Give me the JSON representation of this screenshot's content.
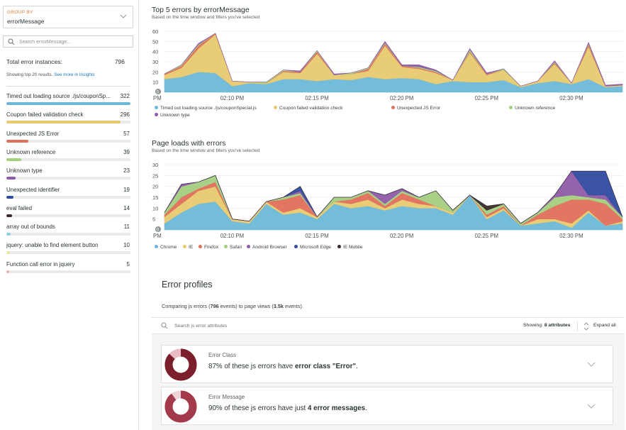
{
  "sidebar": {
    "group_by": {
      "label": "GROUP BY",
      "value": "errorMessage"
    },
    "search": {
      "placeholder": "Search errorMessage..."
    },
    "total": {
      "label": "Total error instances:",
      "value": "796"
    },
    "showing": {
      "text": "Showing top 20 results.",
      "link": "See more in Insights"
    },
    "errors": [
      {
        "label": "Timed out loading source ./js/couponSp...",
        "count": 322,
        "color": "#6cb8d8"
      },
      {
        "label": "Coupon failed validation check",
        "count": 296,
        "color": "#e8c96f"
      },
      {
        "label": "Unexpected JS Error",
        "count": 57,
        "color": "#e06f5b"
      },
      {
        "label": "Unknown reference",
        "count": 39,
        "color": "#a4cf7f"
      },
      {
        "label": "Unknown type",
        "count": 23,
        "color": "#8e5ba8"
      },
      {
        "label": "Unexpected identifier",
        "count": 19,
        "color": "#2f4aa0"
      },
      {
        "label": "eval failed",
        "count": 14,
        "color": "#3c2a2a"
      },
      {
        "label": "array out of bounds",
        "count": 11,
        "color": "#8fd0e8"
      },
      {
        "label": "jquery: unable to find element button",
        "count": 10,
        "color": "#f1e4a8"
      },
      {
        "label": "Function call error in jquery",
        "count": 5,
        "color": "#f0b0a8"
      }
    ]
  },
  "chart1": {
    "title": "Top 5 errors by errorMessage",
    "subtitle": "Based on the time window and filters you've selected",
    "legend": [
      {
        "label": "Timed out loading source ./js/couponSpecial.js",
        "color": "#6cb8d8"
      },
      {
        "label": "Coupon failed validation check",
        "color": "#e8c96f"
      },
      {
        "label": "Unexpected JS Error",
        "color": "#e06f5b"
      },
      {
        "label": "Unknown reference",
        "color": "#a4cf7f"
      },
      {
        "label": "Unknown type",
        "color": "#8e5ba8"
      }
    ]
  },
  "chart2": {
    "title": "Page loads with errors",
    "subtitle": "Based on the time window and filters you've selected",
    "legend": [
      {
        "label": "Chrome",
        "color": "#6cb8d8"
      },
      {
        "label": "IE",
        "color": "#e8c96f"
      },
      {
        "label": "Firefox",
        "color": "#e06f5b"
      },
      {
        "label": "Safari",
        "color": "#a4cf7f"
      },
      {
        "label": "Android Browser",
        "color": "#8e5ba8"
      },
      {
        "label": "Microsoft Edge",
        "color": "#2f4aa0"
      },
      {
        "label": "IE Mobile",
        "color": "#3c2a2a"
      }
    ]
  },
  "chart_data": [
    {
      "type": "area",
      "title": "Top 5 errors by errorMessage",
      "x": [
        "02:06 PM",
        "02:07",
        "02:08",
        "02:09",
        "02:10",
        "02:11",
        "02:12",
        "02:13",
        "02:14",
        "02:15",
        "02:16",
        "02:17",
        "02:18",
        "02:19",
        "02:20",
        "02:21",
        "02:22",
        "02:23",
        "02:24",
        "02:25",
        "02:26",
        "02:27",
        "02:28",
        "02:29",
        "02:30",
        "02:31",
        "02:32",
        "02:33"
      ],
      "xticks": [
        "PM",
        "02:10 PM",
        "02:15 PM",
        "02:20 PM",
        "02:25 PM",
        "02:30 PM"
      ],
      "ylim": [
        0,
        60
      ],
      "yticks": [
        0,
        10,
        20,
        30,
        40,
        50,
        60
      ],
      "series": [
        {
          "name": "Timed out loading source ./js/couponSpecial.js",
          "values": [
            13,
            15,
            20,
            19,
            6,
            9,
            8,
            13,
            13,
            11,
            13,
            12,
            15,
            13,
            14,
            13,
            8,
            11,
            10,
            10,
            12,
            5,
            9,
            11,
            8,
            13,
            5,
            6
          ]
        },
        {
          "name": "Coupon failed validation check",
          "values": [
            4,
            9,
            23,
            38,
            5,
            1,
            1,
            7,
            6,
            27,
            4,
            6,
            6,
            33,
            11,
            10,
            11,
            1,
            29,
            7,
            10,
            1,
            2,
            17,
            1,
            32,
            1,
            1
          ]
        },
        {
          "name": "Unexpected JS Error",
          "values": [
            1,
            2,
            3,
            1,
            0,
            0,
            0,
            1,
            1,
            2,
            0,
            0,
            2,
            2,
            1,
            1,
            1,
            0,
            1,
            1,
            0,
            0,
            0,
            1,
            0,
            2,
            0,
            0
          ]
        },
        {
          "name": "Unknown reference",
          "values": [
            0,
            1,
            1,
            0,
            0,
            0,
            1,
            1,
            0,
            1,
            0,
            1,
            1,
            1,
            0,
            1,
            1,
            0,
            2,
            0,
            1,
            0,
            0,
            1,
            0,
            1,
            0,
            0
          ]
        },
        {
          "name": "Unknown type",
          "values": [
            0,
            0,
            1,
            0,
            0,
            0,
            0,
            0,
            1,
            0,
            1,
            0,
            0,
            1,
            1,
            2,
            1,
            0,
            1,
            1,
            0,
            0,
            0,
            1,
            0,
            1,
            1,
            1
          ]
        }
      ]
    },
    {
      "type": "area",
      "title": "Page loads with errors",
      "x": [
        "02:06 PM",
        "02:07",
        "02:08",
        "02:09",
        "02:10",
        "02:11",
        "02:12",
        "02:13",
        "02:14",
        "02:15",
        "02:16",
        "02:17",
        "02:18",
        "02:19",
        "02:20",
        "02:21",
        "02:22",
        "02:23",
        "02:24",
        "02:25",
        "02:26",
        "02:27",
        "02:28",
        "02:29",
        "02:30",
        "02:31",
        "02:32",
        "02:33"
      ],
      "xticks": [
        "PM",
        "02:10 PM",
        "02:15 PM",
        "02:20 PM",
        "02:25 PM",
        "02:30 PM"
      ],
      "ylim": [
        0,
        30
      ],
      "yticks": [
        0,
        5,
        10,
        15,
        20,
        25,
        30
      ],
      "series": [
        {
          "name": "Chrome",
          "values": [
            3,
            8,
            12,
            13,
            4,
            3,
            12,
            7,
            8,
            5,
            12,
            10,
            11,
            9,
            11,
            10,
            10,
            7,
            16,
            5,
            9,
            2,
            3,
            4,
            1,
            8,
            2,
            3
          ]
        },
        {
          "name": "IE",
          "values": [
            3,
            4,
            6,
            7,
            1,
            1,
            1,
            1,
            2,
            1,
            1,
            2,
            3,
            1,
            3,
            2,
            1,
            1,
            0,
            1,
            1,
            0,
            2,
            1,
            2,
            1,
            0,
            1
          ]
        },
        {
          "name": "Firefox",
          "values": [
            1,
            3,
            1,
            2,
            0,
            0,
            0,
            6,
            6,
            0,
            0,
            2,
            3,
            1,
            3,
            2,
            0,
            0,
            0,
            1,
            1,
            0,
            2,
            6,
            11,
            5,
            10,
            1
          ]
        },
        {
          "name": "Safari",
          "values": [
            1,
            5,
            3,
            3,
            0,
            0,
            0,
            1,
            1,
            0,
            2,
            1,
            1,
            1,
            1,
            1,
            7,
            1,
            0,
            2,
            1,
            1,
            1,
            4,
            2,
            1,
            2,
            1
          ]
        },
        {
          "name": "Android Browser",
          "values": [
            0,
            1,
            0,
            0,
            0,
            0,
            0,
            0,
            1,
            0,
            0,
            0,
            0,
            4,
            1,
            0,
            0,
            0,
            0,
            0,
            0,
            0,
            0,
            1,
            11,
            1,
            2,
            0
          ]
        },
        {
          "name": "Microsoft Edge",
          "values": [
            0,
            0,
            0,
            0,
            0,
            0,
            0,
            0,
            2,
            0,
            0,
            0,
            0,
            0,
            0,
            0,
            0,
            0,
            0,
            0,
            0,
            0,
            0,
            0,
            0,
            11,
            11,
            0
          ]
        },
        {
          "name": "IE Mobile",
          "values": [
            0,
            0,
            0,
            0,
            0,
            0,
            0,
            0,
            0,
            0,
            0,
            0,
            0,
            0,
            0,
            0,
            0,
            0,
            0,
            2,
            0,
            0,
            0,
            0,
            0,
            0,
            0,
            0
          ]
        }
      ]
    }
  ],
  "profiles": {
    "title": "Error profiles",
    "subtitle_pre": "Comparing js errors (",
    "subtitle_errors": "796",
    "subtitle_mid": " events) to page views (",
    "subtitle_views": "3.5k",
    "subtitle_post": " events).",
    "search_placeholder": "Search js error attributes",
    "showing_label": "Showing:",
    "showing_value": "8 attributes",
    "expand_label": "Expand all",
    "cards": [
      {
        "heading": "Error Class",
        "text_pre": "87% of these js errors have ",
        "text_bold": "error class \"Error\"",
        "text_post": ".",
        "donut": {
          "main_pct": 87,
          "main_color": "#7a1f2b",
          "rest_color": "#e8bcc1"
        }
      },
      {
        "heading": "Error Message",
        "text_pre": "90% of these js errors have just ",
        "text_bold": "4 error messages",
        "text_post": ".",
        "donut": {
          "main_pct": 90,
          "main_color": "#a23a4b",
          "rest_color": "#f0d4d8"
        }
      }
    ]
  }
}
